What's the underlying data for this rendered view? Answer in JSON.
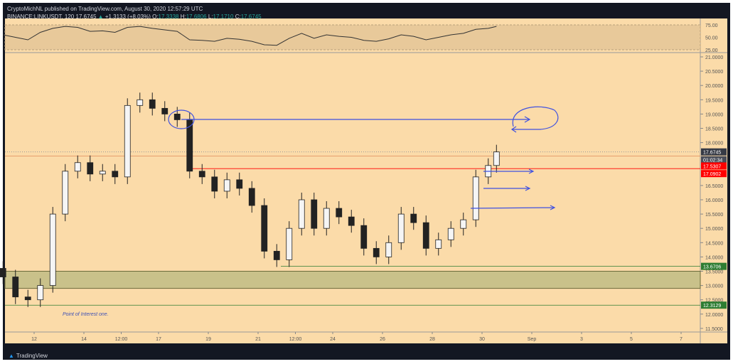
{
  "header": {
    "published": "CryptoMichNL published on TradingView.com, August 30, 2020 12:57:29 UTC",
    "symbol": "BINANCE:LINKUSDT, 120",
    "last": "17.6745",
    "change": "+1.3133 (+8.03%)",
    "o_label": "O:",
    "o": "17.3338",
    "h_label": "H:",
    "h": "17.6806",
    "l_label": "L:",
    "l": "17.1710",
    "c_label": "C:",
    "c": "17.6745"
  },
  "footer": {
    "brand": "TradingView"
  },
  "colors": {
    "background": "#fbdba9",
    "up": "#26a69a",
    "candle": "#222222",
    "drawing": "#3f51e0",
    "red_line": "#ff0000",
    "green_line": "#2e7d32",
    "zone": "#c9c18a"
  },
  "chart_data": {
    "type": "candlestick",
    "rsi_panel": {
      "ticks": [
        "75.00",
        "50.00",
        "25.00"
      ],
      "band": [
        25,
        75
      ],
      "values": [
        55,
        50,
        45,
        60,
        68,
        72,
        70,
        62,
        63,
        60,
        70,
        72,
        68,
        65,
        62,
        45,
        44,
        42,
        48,
        46,
        42,
        35,
        34,
        48,
        58,
        48,
        55,
        52,
        50,
        44,
        42,
        47,
        55,
        52,
        45,
        50,
        55,
        58,
        66,
        68,
        72
      ]
    },
    "price_axis": {
      "ylim": [
        11.25,
        21.2
      ],
      "ticks": [
        "21.0000",
        "20.5000",
        "20.0000",
        "19.5000",
        "19.0000",
        "18.5000",
        "18.0000",
        "16.5000",
        "16.0000",
        "15.5000",
        "15.0000",
        "14.5000",
        "14.0000",
        "13.5000",
        "13.0000",
        "12.5000",
        "12.0000",
        "11.5000"
      ]
    },
    "time_axis": {
      "ticks": [
        "12",
        "14",
        "12:00",
        "17",
        "19",
        "21",
        "12:00",
        "24",
        "26",
        "28",
        "30",
        "Sep",
        "3",
        "5",
        "7"
      ]
    },
    "x": [
      "Aug 10 18:00",
      "Aug 11",
      "Aug 11 12:00",
      "Aug 12",
      "Aug 12 12:00",
      "Aug 13",
      "Aug 13 12:00",
      "Aug 14",
      "Aug 14 12:00",
      "Aug 15",
      "Aug 15 12:00",
      "Aug 16",
      "Aug 16 12:00",
      "Aug 17",
      "Aug 17 12:00",
      "Aug 18",
      "Aug 18 12:00",
      "Aug 19",
      "Aug 19 12:00",
      "Aug 20",
      "Aug 20 12:00",
      "Aug 21",
      "Aug 21 12:00",
      "Aug 22",
      "Aug 22 12:00",
      "Aug 23",
      "Aug 23 12:00",
      "Aug 24",
      "Aug 24 12:00",
      "Aug 25",
      "Aug 25 12:00",
      "Aug 26",
      "Aug 26 12:00",
      "Aug 27",
      "Aug 27 12:00",
      "Aug 28",
      "Aug 28 12:00",
      "Aug 29",
      "Aug 29 12:00",
      "Aug 30",
      "Aug 30 08:00"
    ],
    "close": [
      13.3,
      12.6,
      12.5,
      13.0,
      15.5,
      17.0,
      17.3,
      16.9,
      17.0,
      16.8,
      19.3,
      19.5,
      19.2,
      19.0,
      18.8,
      17.0,
      16.8,
      16.3,
      16.7,
      16.4,
      15.8,
      14.2,
      13.9,
      15.0,
      16.0,
      15.0,
      15.7,
      15.4,
      15.1,
      14.3,
      14.0,
      14.5,
      15.5,
      15.2,
      14.3,
      14.6,
      15.0,
      15.3,
      16.8,
      17.2,
      17.6745
    ],
    "levels": [
      {
        "label": "17.6745",
        "value": 17.6745,
        "kind": "last"
      },
      {
        "label": "01:02:34",
        "kind": "countdown"
      },
      {
        "label": "17.5307",
        "value": 17.5307,
        "kind": "red"
      },
      {
        "label": "17.0902",
        "value": 17.0902,
        "kind": "red"
      },
      {
        "label": "13.6706",
        "value": 13.6706,
        "kind": "green"
      },
      {
        "label": "12.3129",
        "value": 12.3129,
        "kind": "green"
      }
    ],
    "zone": [
      12.9,
      13.5
    ],
    "annotations": [
      {
        "text": "Point of Interest one."
      }
    ]
  }
}
